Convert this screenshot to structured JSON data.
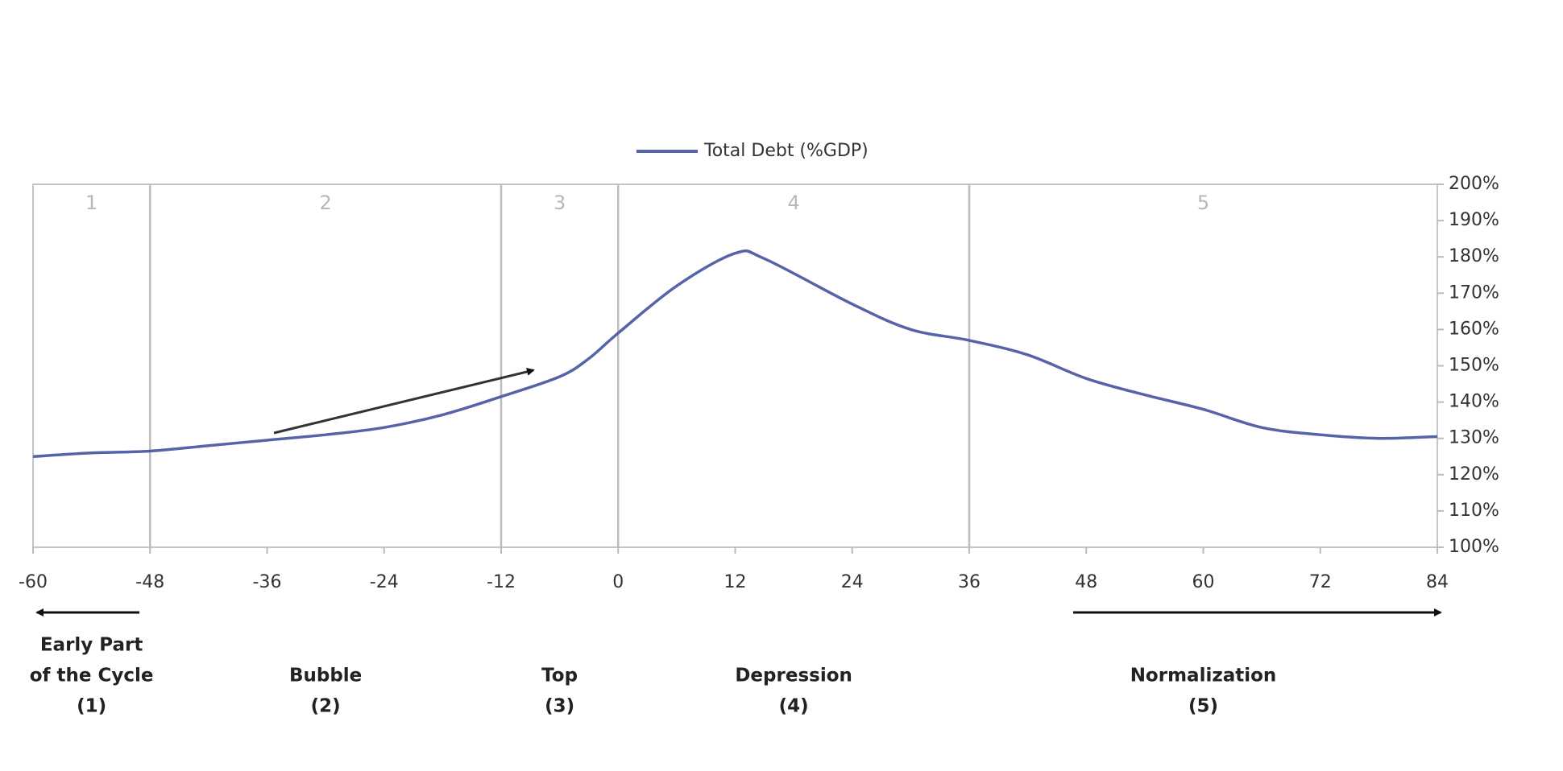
{
  "chart_data": {
    "type": "line",
    "x": [
      -60,
      -54,
      -48,
      -42,
      -36,
      -30,
      -24,
      -18,
      -12,
      -6,
      -3,
      0,
      6,
      12,
      15,
      24,
      30,
      36,
      42,
      48,
      54,
      60,
      66,
      72,
      78,
      84
    ],
    "series": [
      {
        "name": "Total Debt (%GDP)",
        "color": "#5563a8",
        "values": [
          125,
          126,
          126.5,
          128,
          129.5,
          131,
          133,
          136.5,
          141.5,
          147,
          152,
          159,
          172,
          181,
          179.5,
          167,
          160,
          157,
          153,
          146.5,
          142,
          138,
          133,
          131,
          130,
          130.5
        ]
      }
    ],
    "xlim": [
      -60,
      84
    ],
    "ylim": [
      100,
      200
    ],
    "xticks": [
      -60,
      -48,
      -36,
      -24,
      -12,
      0,
      12,
      24,
      36,
      48,
      60,
      72,
      84
    ],
    "yticks": [
      {
        "value": 100,
        "label": "100%"
      },
      {
        "value": 110,
        "label": "110%"
      },
      {
        "value": 120,
        "label": "120%"
      },
      {
        "value": 130,
        "label": "130%"
      },
      {
        "value": 140,
        "label": "140%"
      },
      {
        "value": 150,
        "label": "150%"
      },
      {
        "value": 160,
        "label": "160%"
      },
      {
        "value": 170,
        "label": "170%"
      },
      {
        "value": 180,
        "label": "180%"
      },
      {
        "value": 190,
        "label": "190%"
      },
      {
        "value": 200,
        "label": "200%"
      }
    ],
    "y_axis_side": "right",
    "legend": "top",
    "dividers": [
      -48,
      -12,
      0,
      36
    ],
    "phases": [
      {
        "number": "1",
        "label": [
          "Early Part",
          "of the Cycle",
          "(1)"
        ]
      },
      {
        "number": "2",
        "label": [
          "Bubble",
          "(2)"
        ]
      },
      {
        "number": "3",
        "label": [
          "Top",
          "(3)"
        ]
      },
      {
        "number": "4",
        "label": [
          "Depression",
          "(4)"
        ]
      },
      {
        "number": "5",
        "label": [
          "Normalization",
          "(5)"
        ]
      }
    ]
  }
}
